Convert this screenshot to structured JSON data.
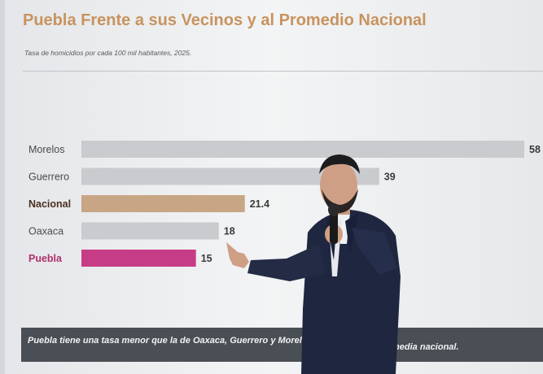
{
  "slide": {
    "title": "Puebla Frente a sus Vecinos y al Promedio Nacional",
    "subtitle": "Tasa de homicidios por cada 100 mil habitantes, 2025.",
    "banner_text": "Puebla tiene una tasa menor que la de Oaxaca, Guerrero y Morelos, y es",
    "banner_text_end": "media nacional."
  },
  "chart_data": {
    "type": "bar",
    "orientation": "horizontal",
    "title": "Puebla Frente a sus Vecinos y al Promedio Nacional",
    "subtitle": "Tasa de homicidios por cada 100 mil habitantes, 2025.",
    "categories": [
      "Morelos",
      "Guerrero",
      "Nacional",
      "Oaxaca",
      "Puebla"
    ],
    "values": [
      58,
      39,
      21.4,
      18,
      15
    ],
    "value_labels": [
      "58",
      "39",
      "21.4",
      "18",
      "15"
    ],
    "bar_colors": [
      "#c9cbce",
      "#c9cbce",
      "#c8a584",
      "#c9cbce",
      "#c73c86"
    ],
    "label_colors": [
      "#4a4a4a",
      "#4a4a4a",
      "#4a3020",
      "#4a4a4a",
      "#b0306e"
    ],
    "label_weights": [
      "normal",
      "normal",
      "bold",
      "normal",
      "bold"
    ],
    "xlim": [
      0,
      58
    ],
    "grid": false,
    "legend": "none"
  },
  "colors": {
    "title": "#c8935e",
    "banner_bg": "#4a4f55",
    "highlight": "#c73c86",
    "national": "#c8a584",
    "neutral_bar": "#c9cbce"
  }
}
